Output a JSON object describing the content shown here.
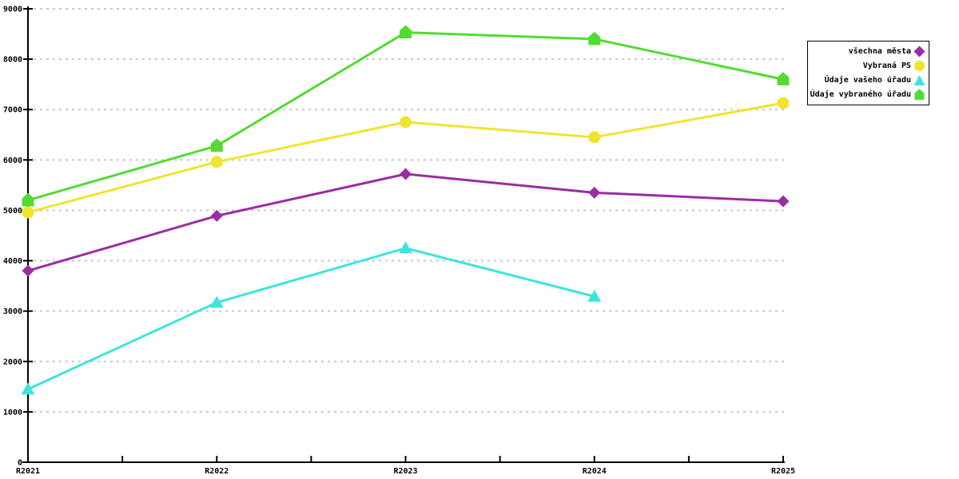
{
  "chart_data": {
    "type": "line",
    "title": "",
    "categories": [
      "R2021",
      "R2022",
      "R2023",
      "R2024",
      "R2025"
    ],
    "series": [
      {
        "name": "všechna města",
        "marker": "diamond",
        "color": "#9B2DA3",
        "values": [
          3800,
          4890,
          5720,
          5350,
          5180
        ]
      },
      {
        "name": "Vybraná PS",
        "marker": "circle",
        "color": "#F0E430",
        "values": [
          4960,
          5960,
          6750,
          6450,
          7130
        ]
      },
      {
        "name": "Údaje vašeho úřadu",
        "marker": "triangle",
        "color": "#3DE5DC",
        "values": [
          1450,
          3170,
          4250,
          3290,
          null
        ]
      },
      {
        "name": "Údaje vybraného úřadu",
        "marker": "pentagon",
        "color": "#53DB33",
        "values": [
          5200,
          6280,
          8530,
          8400,
          7600
        ]
      }
    ],
    "xlabel": "",
    "ylabel": "",
    "ylim": [
      0,
      9000
    ],
    "ytick_interval": 1000,
    "y_tick_labels": [
      "0",
      "1000",
      "2000",
      "3000",
      "4000",
      "5000",
      "6000",
      "7000",
      "8000",
      "9000"
    ],
    "x_tick_labels": [
      "R2021",
      "R2022",
      "R2023",
      "R2024",
      "R2025"
    ],
    "grid": "horizontal-dotted",
    "legend_position": "outside-top-right"
  },
  "style": {
    "background": "#ffffff",
    "axis_color": "#000000",
    "grid_color": "#c8c8c8",
    "text_color": "#000000",
    "legend_border": "#000000",
    "legend_background": "#ffffff"
  }
}
